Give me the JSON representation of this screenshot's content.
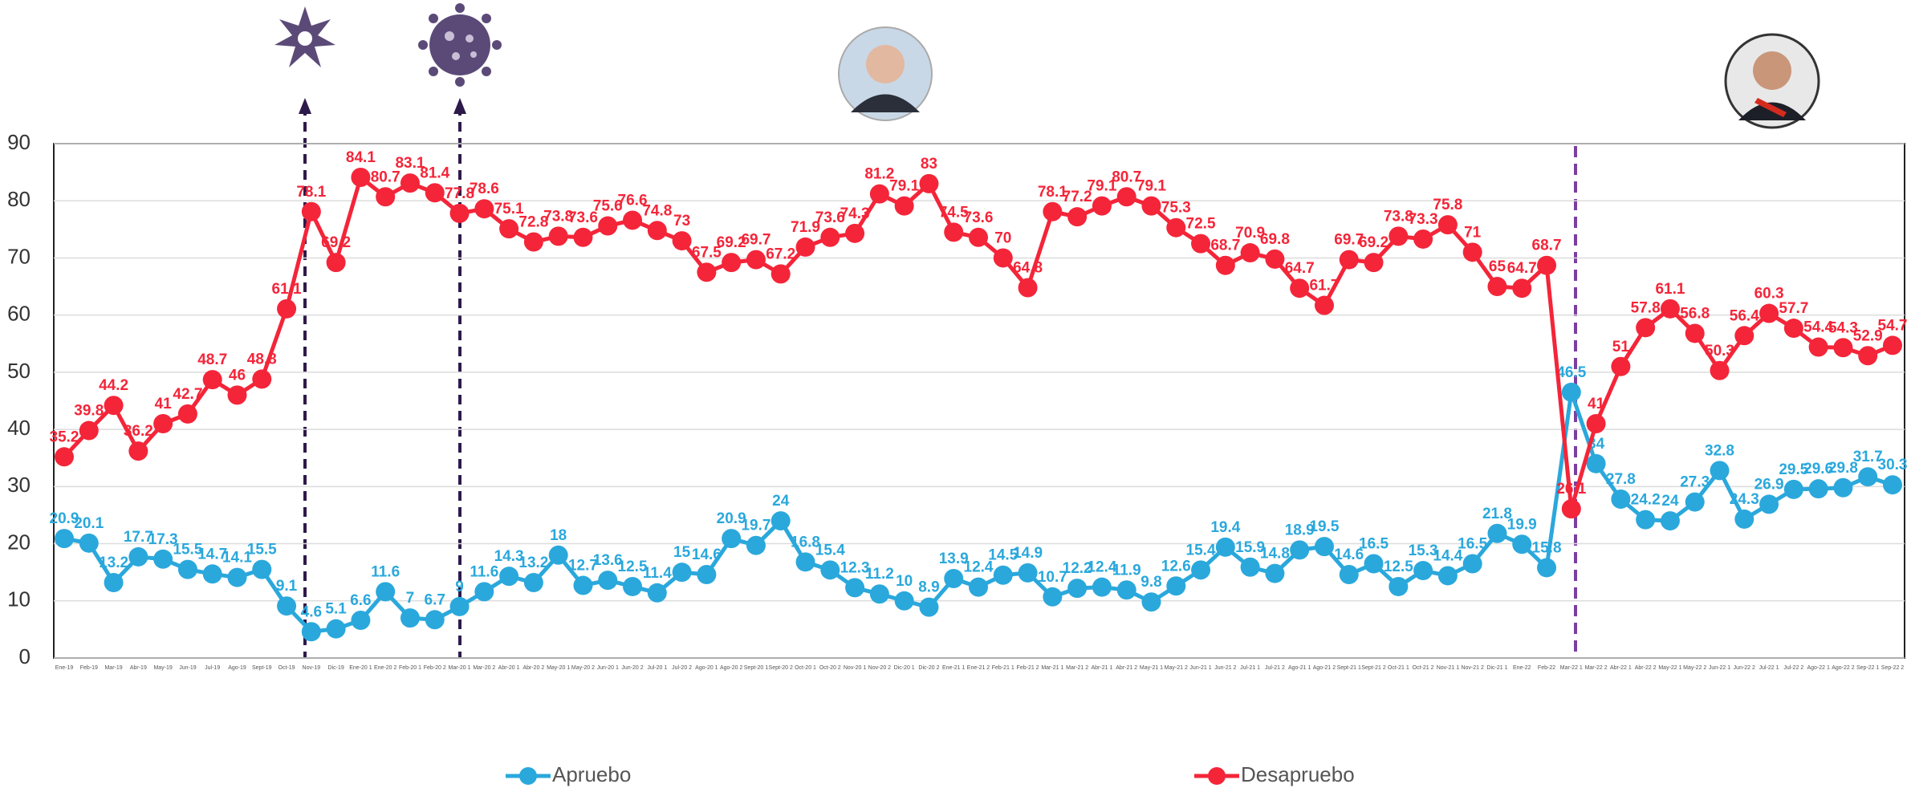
{
  "chart_data": {
    "type": "line",
    "categories": [
      "Ene-19",
      "Feb-19",
      "Mar-19",
      "Abr-19",
      "May-19",
      "Jun-19",
      "Jul-19",
      "Ago-19",
      "Sept-19",
      "Oct-19",
      "Nov-19",
      "Dic-19",
      "Ene-20 1",
      "Ene-20 2",
      "Feb-20 1",
      "Feb-20 2",
      "Mar-20 1",
      "Mar-20 2",
      "Abr-20 1",
      "Abr-20 2",
      "May-20 1",
      "May-20 2",
      "Jun-20 1",
      "Jun-20 2",
      "Jul-20 1",
      "Jul-20 2",
      "Ago-20 1",
      "Ago-20 2",
      "Sept-20 1",
      "Sept-20 2",
      "Oct-20 1",
      "Oct-20 2",
      "Nov-20 1",
      "Nov-20 2",
      "Dic-20 1",
      "Dic-20 2",
      "Ene-21 1",
      "Ene-21 2",
      "Feb-21 1",
      "Feb-21 2",
      "Mar-21 1",
      "Mar-21 2",
      "Abr-21 1",
      "Abr-21 2",
      "May-21 1",
      "May-21 2",
      "Jun-21 1",
      "Jun-21 2",
      "Jul-21 1",
      "Jul-21 2",
      "Ago-21 1",
      "Ago-21 2",
      "Sept-21 1",
      "Sept-21 2",
      "Oct-21 1",
      "Oct-21 2",
      "Nov-21 1",
      "Nov-21 2",
      "Dic-21 1",
      "Ene-22",
      "Feb-22",
      "Mar-22 1",
      "Mar-22 2",
      "Abr-22 1",
      "Abr-22 2",
      "May-22 1",
      "May-22 2",
      "Jun-22 1",
      "Jun-22 2",
      "Jul-22 1",
      "Jul-22 2",
      "Ago-22 1",
      "Ago-22 2",
      "Sep-22 1",
      "Sep-22 2"
    ],
    "series": [
      {
        "name": "Apruebo",
        "color": "#2aa8dc",
        "values": [
          20.9,
          20.1,
          13.2,
          17.7,
          17.3,
          15.5,
          14.7,
          14.1,
          15.5,
          9.1,
          4.6,
          5.1,
          6.6,
          11.6,
          7,
          6.7,
          9,
          11.6,
          14.3,
          13.2,
          18,
          12.7,
          13.6,
          12.5,
          11.4,
          15,
          14.6,
          20.9,
          19.7,
          24,
          16.8,
          15.4,
          12.3,
          11.2,
          10,
          8.9,
          13.9,
          12.4,
          14.5,
          14.9,
          10.7,
          12.2,
          12.4,
          11.9,
          9.8,
          12.6,
          15.4,
          19.4,
          15.9,
          14.8,
          18.9,
          19.5,
          14.6,
          16.5,
          12.5,
          15.3,
          14.4,
          16.5,
          21.8,
          19.9,
          15.8,
          46.5,
          34,
          27.8,
          24.2,
          24,
          27.3,
          32.8,
          24.3,
          26.9,
          29.5,
          29.6,
          29.8,
          31.7,
          30.3
        ]
      },
      {
        "name": "Desapruebo",
        "color": "#f42539",
        "values": [
          35.2,
          39.8,
          44.2,
          36.2,
          41,
          42.7,
          48.7,
          46,
          48.8,
          61.1,
          78.1,
          69.2,
          84.1,
          80.7,
          83.1,
          81.4,
          77.8,
          78.6,
          75.1,
          72.8,
          73.8,
          73.6,
          75.6,
          76.6,
          74.8,
          73,
          67.5,
          69.2,
          69.7,
          67.2,
          71.9,
          73.6,
          74.3,
          81.2,
          79.1,
          83,
          74.5,
          73.6,
          70,
          64.8,
          78.1,
          77.2,
          79.1,
          80.7,
          79.1,
          75.3,
          72.5,
          68.7,
          70.9,
          69.8,
          64.7,
          61.7,
          69.7,
          69.2,
          73.8,
          73.3,
          75.8,
          71,
          65,
          64.7,
          68.7,
          26.1,
          41,
          51,
          57.8,
          61.1,
          56.8,
          50.3,
          56.4,
          60.3,
          57.7,
          54.4,
          54.3,
          52.9,
          54.7
        ]
      }
    ],
    "ylim": [
      0,
      90
    ],
    "yticks": [
      0,
      10,
      20,
      30,
      40,
      50,
      60,
      70,
      80,
      90
    ],
    "grid": true,
    "legend": "bottom"
  }
}
